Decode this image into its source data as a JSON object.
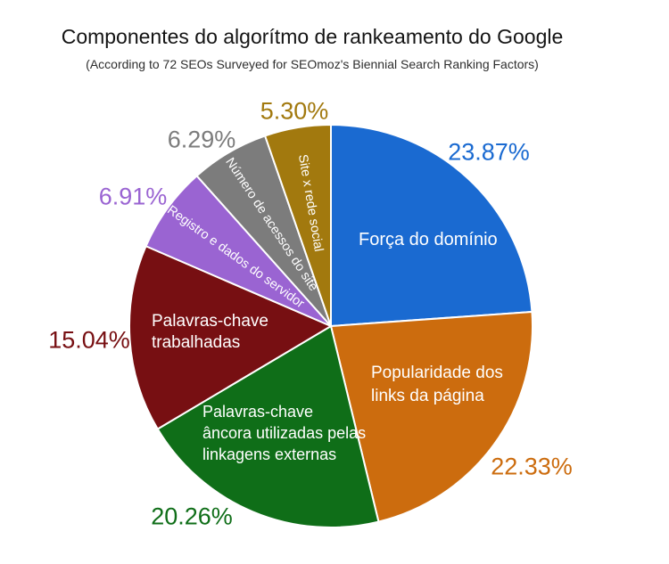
{
  "chart_data": {
    "type": "pie",
    "title": "Componentes do algorítmo de rankeamento do Google",
    "subtitle": "(According to 72 SEOs Surveyed for SEOmoz's Biennial Search Ranking Factors)",
    "start_angle_deg_from_top": 0,
    "direction": "clockwise",
    "legend_position": "none",
    "slices": [
      {
        "key": "forca-do-dominio",
        "name": "Força do domínio",
        "value_pct": 23.87,
        "value_label": "23.87%",
        "color": "#1A6AD1",
        "label_lines": [
          "Força do domínio"
        ],
        "label_placement": "inside-horizontal"
      },
      {
        "key": "popularidade-dos-links-da-pagina",
        "name": "Popularidade dos links da página",
        "value_pct": 22.33,
        "value_label": "22.33%",
        "color": "#CC6C0E",
        "label_lines": [
          "Popularidade dos",
          "links da página"
        ],
        "label_placement": "inside-horizontal"
      },
      {
        "key": "palavras-chave-ancora",
        "name": "Palavras-chave âncora utilizadas pelas linkagens externas",
        "value_pct": 20.26,
        "value_label": "20.26%",
        "color": "#0F6E18",
        "label_lines": [
          "Palavras-chave",
          "âncora utilizadas pelas",
          "linkagens externas"
        ],
        "label_placement": "inside-horizontal"
      },
      {
        "key": "palavras-chave-trabalhadas",
        "name": "Palavras-chave trabalhadas",
        "value_pct": 15.04,
        "value_label": "15.04%",
        "color": "#770F12",
        "label_lines": [
          "Palavras-chave",
          "trabalhadas"
        ],
        "label_placement": "inside-horizontal"
      },
      {
        "key": "registro-e-dados-do-servidor",
        "name": "Registro e dados do servidor",
        "value_pct": 6.91,
        "value_label": "6.91%",
        "color": "#9A64D2",
        "label_lines": [
          "Registro e dados do servidor"
        ],
        "label_placement": "inside-rotated"
      },
      {
        "key": "numero-de-acessos-do-site",
        "name": "Número de acessos do site",
        "value_pct": 6.29,
        "value_label": "6.29%",
        "color": "#7C7C7C",
        "label_lines": [
          "Número de acessos do site"
        ],
        "label_placement": "inside-rotated"
      },
      {
        "key": "site-x-rede-social",
        "name": "Site x rede social",
        "value_pct": 5.3,
        "value_label": "5.30%",
        "color": "#A2790E",
        "label_lines": [
          "Site x rede social"
        ],
        "label_placement": "inside-rotated"
      }
    ]
  }
}
